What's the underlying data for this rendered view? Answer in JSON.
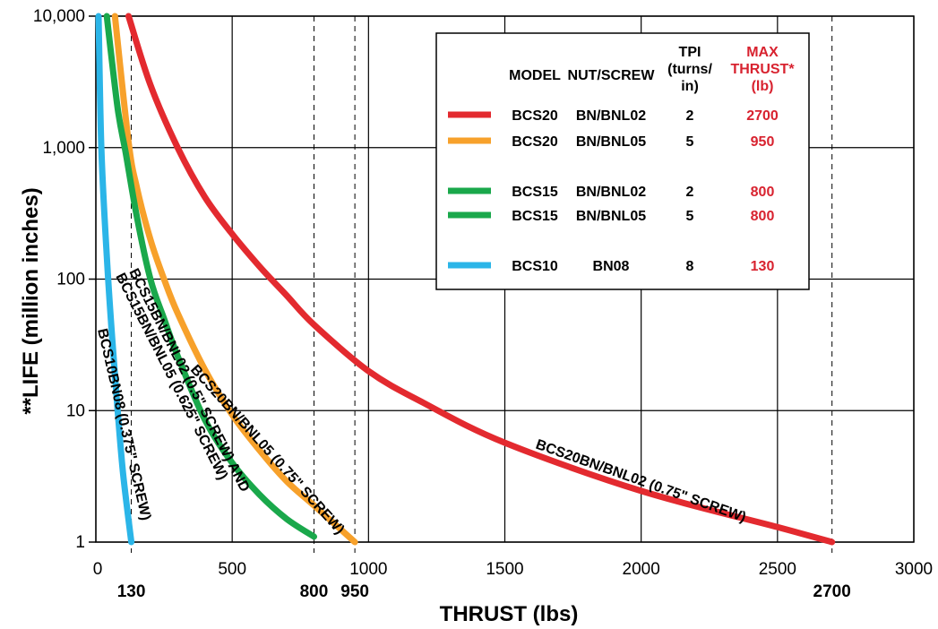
{
  "chart_data": {
    "type": "line",
    "xlabel": "THRUST (lbs)",
    "ylabel": "**LIFE (million inches)",
    "xlim": [
      0,
      3000
    ],
    "ylim": [
      1,
      10000
    ],
    "yscale": "log",
    "x_ticks": [
      "0",
      "500",
      "1000",
      "1500",
      "2000",
      "2500",
      "3000"
    ],
    "y_ticks": [
      "1",
      "10",
      "100",
      "1,000",
      "10,000"
    ],
    "thrust_marks": [
      "130",
      "800",
      "950",
      "2700"
    ],
    "grid": true,
    "legend_position": "top-right",
    "legend": {
      "headers": {
        "model": "MODEL",
        "nut": "NUT/SCREW",
        "tpi1": "TPI",
        "tpi2": "(turns/",
        "tpi3": "in)",
        "max1": "MAX",
        "max2": "THRUST*",
        "max3": "(lb)"
      },
      "rows": [
        {
          "model": "BCS20",
          "nut": "BN/BNL02",
          "tpi": "2",
          "max": "2700",
          "color": "#e32a2f"
        },
        {
          "model": "BCS20",
          "nut": "BN/BNL05",
          "tpi": "5",
          "max": "950",
          "color": "#f7a12b"
        },
        {
          "model": "BCS15",
          "nut": "BN/BNL02",
          "tpi": "2",
          "max": "800",
          "color": "#1aa84b"
        },
        {
          "model": "BCS15",
          "nut": "BN/BNL05",
          "tpi": "5",
          "max": "800",
          "color": "#1aa84b"
        },
        {
          "model": "BCS10",
          "nut": "BN08",
          "tpi": "8",
          "max": "130",
          "color": "#2bb5e8"
        }
      ]
    },
    "series": [
      {
        "color": "#e32a2f",
        "x": [
          120,
          200,
          300,
          400,
          500,
          600,
          700,
          800,
          1000,
          1200,
          1500,
          2000,
          2500,
          2700
        ],
        "y": [
          10000,
          3000,
          1000,
          420,
          220,
          125,
          75,
          45,
          20,
          11.5,
          5.7,
          2.45,
          1.3,
          1
        ]
      },
      {
        "color": "#f7a12b",
        "x": [
          70,
          120,
          150,
          200,
          250,
          300,
          400,
          500,
          600,
          700,
          800,
          950
        ],
        "y": [
          10000,
          1100,
          500,
          200,
          100,
          55,
          20.5,
          9.3,
          5,
          2.9,
          1.9,
          1
        ]
      },
      {
        "color": "#1aa84b",
        "x": [
          40,
          80,
          110,
          150,
          200,
          250,
          300,
          400,
          500,
          600,
          700,
          800
        ],
        "y": [
          10000,
          2000,
          900,
          300,
          100,
          50,
          26,
          8.5,
          4,
          2.3,
          1.5,
          1.1
        ]
      },
      {
        "color": "#2bb5e8",
        "x": [
          10,
          20,
          40,
          60,
          80,
          100,
          130
        ],
        "y": [
          10000,
          1000,
          150,
          35,
          10,
          3.3,
          1
        ]
      }
    ],
    "annotations": [
      "BCS20BN/BNL02 (0.75\" SCREW)",
      "BCS20BN/BNL05 (0.75\" SCREW)",
      "BCS15BN/BNL02 (0.5\" SCREW) AND",
      "BCS15BN/BNL05 (0.625\" SCREW)",
      "BCS10BN08 (0.375\" SCREW)"
    ]
  }
}
